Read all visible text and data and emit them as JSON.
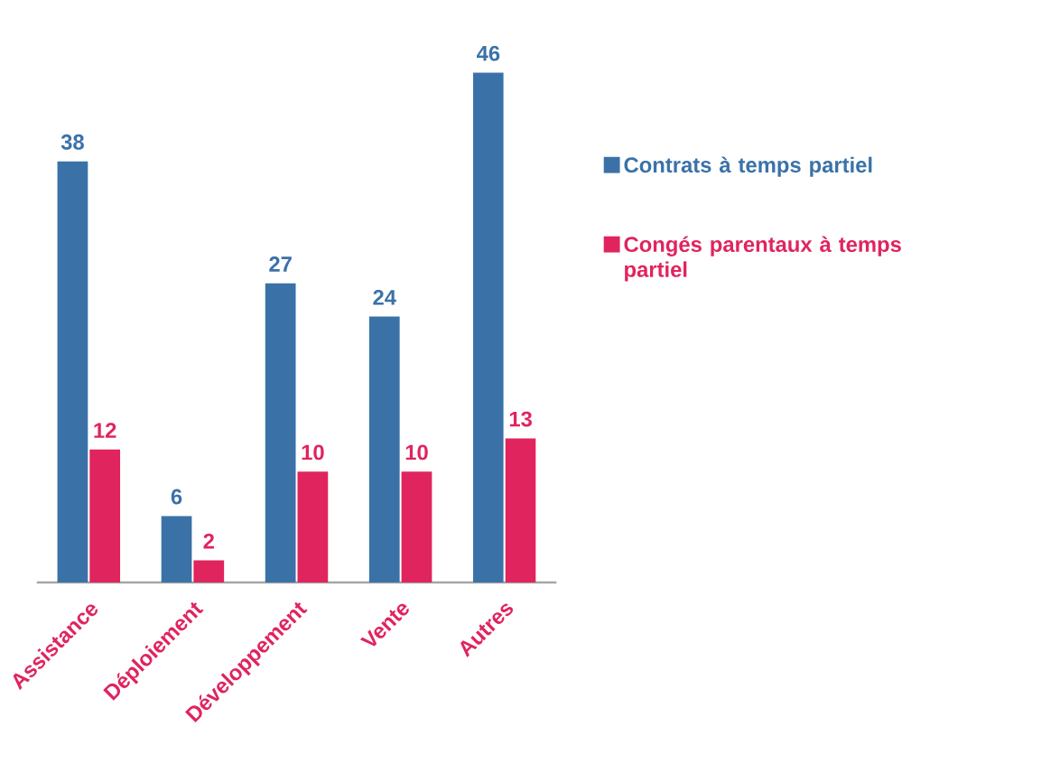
{
  "chart_data": {
    "type": "bar",
    "categories": [
      "Assistance",
      "Déploiement",
      "Développement",
      "Vente",
      "Autres"
    ],
    "series": [
      {
        "name": "Contrats à temps partiel",
        "color": "#3a72a8",
        "values": [
          38,
          6,
          27,
          24,
          46
        ]
      },
      {
        "name": "Congés parentaux à temps partiel",
        "color": "#e0245e",
        "values": [
          12,
          2,
          10,
          10,
          13
        ]
      }
    ],
    "data_labels": true,
    "legend": "right",
    "tick_labels": "x"
  }
}
